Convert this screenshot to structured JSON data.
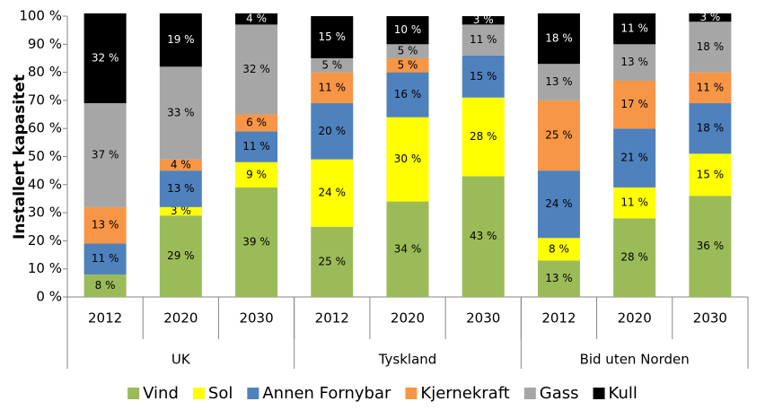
{
  "chart_data": {
    "type": "stacked_bar",
    "y_axis_label": "Installert kapasitet",
    "categories": [
      "2012",
      "2020",
      "2030",
      "2012",
      "2020",
      "2030",
      "2012",
      "2020",
      "2030"
    ],
    "category_groups": [
      "UK",
      "Tyskland",
      "Bid uten Norden"
    ],
    "ylim": [
      0,
      100
    ],
    "yticks": [
      {
        "value": 0,
        "label": "0 %"
      },
      {
        "value": 10,
        "label": "10 %"
      },
      {
        "value": 20,
        "label": "20 %"
      },
      {
        "value": 30,
        "label": "30 %"
      },
      {
        "value": 40,
        "label": "40 %"
      },
      {
        "value": 50,
        "label": "50 %"
      },
      {
        "value": 60,
        "label": "60 %"
      },
      {
        "value": 70,
        "label": "70 %"
      },
      {
        "value": 80,
        "label": "80 %"
      },
      {
        "value": 90,
        "label": "90 %"
      },
      {
        "value": 100,
        "label": "100 %"
      }
    ],
    "legend": "bottom",
    "series": [
      {
        "name": "Vind",
        "color": "#9bbb59",
        "values": [
          8,
          29,
          39,
          25,
          34,
          43,
          13,
          28,
          36
        ],
        "value_labels": [
          "8 %",
          "29 %",
          "39 %",
          "25 %",
          "34 %",
          "43 %",
          "13 %",
          "28 %",
          "36 %"
        ]
      },
      {
        "name": "Sol",
        "color": "#ffff00",
        "values": [
          0,
          3,
          9,
          24,
          30,
          28,
          8,
          11,
          15
        ],
        "value_labels": [
          null,
          "3 %",
          "9 %",
          "24 %",
          "30 %",
          "28 %",
          "8 %",
          "11 %",
          "15 %"
        ]
      },
      {
        "name": "Annen Fornybar",
        "color": "#4f81bd",
        "values": [
          11,
          13,
          11,
          20,
          16,
          15,
          24,
          21,
          18
        ],
        "value_labels": [
          "11 %",
          "13 %",
          "11 %",
          "20 %",
          "16 %",
          "15 %",
          "24 %",
          "21 %",
          "18 %"
        ]
      },
      {
        "name": "Kjernekraft",
        "color": "#f79646",
        "values": [
          13,
          4,
          6,
          11,
          5,
          0,
          25,
          17,
          11
        ],
        "value_labels": [
          "13 %",
          "4 %",
          "6 %",
          "11 %",
          "5 %",
          null,
          "25 %",
          "17 %",
          "11 %"
        ]
      },
      {
        "name": "Gass",
        "color": "#a6a6a6",
        "values": [
          37,
          33,
          32,
          5,
          5,
          11,
          13,
          13,
          18
        ],
        "value_labels": [
          "37 %",
          "33 %",
          "32 %",
          "5 %",
          "5 %",
          "11 %",
          "13 %",
          "13 %",
          "18 %"
        ]
      },
      {
        "name": "Kull",
        "color": "#000000",
        "values": [
          32,
          19,
          4,
          15,
          10,
          3,
          18,
          11,
          3
        ],
        "value_labels": [
          "32 %",
          "19 %",
          "4 %",
          "15 %",
          "10 %",
          "3 %",
          "18 %",
          "11 %",
          "3 %"
        ]
      }
    ]
  }
}
